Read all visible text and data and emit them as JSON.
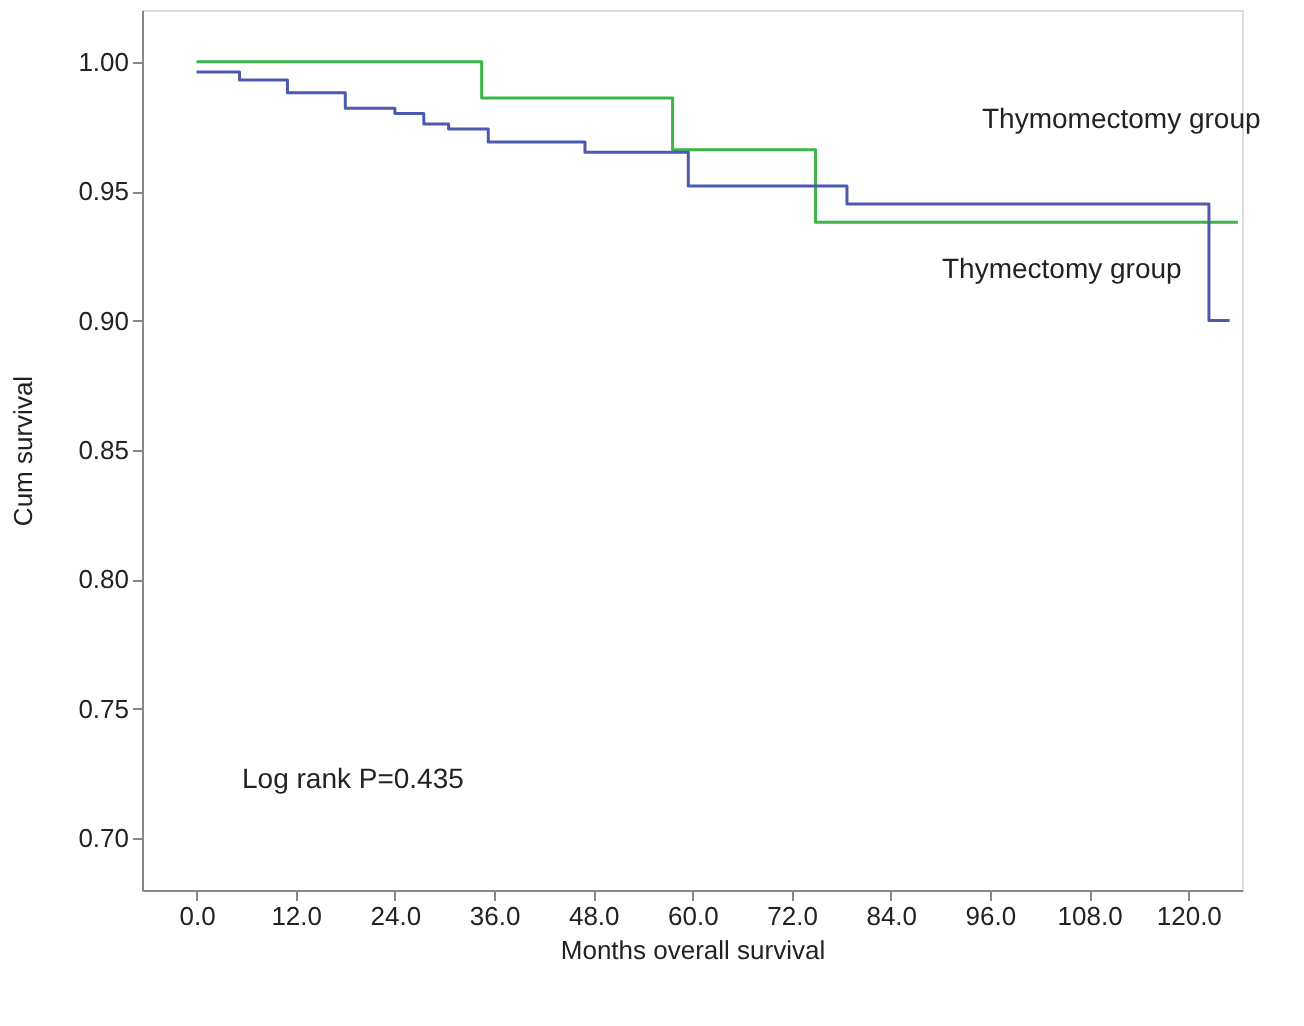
{
  "chart_data": {
    "type": "step",
    "xlabel": "Months overall survival",
    "ylabel": "Cum survival",
    "xlim": [
      -6.6,
      126.5
    ],
    "ylim": [
      0.68,
      1.02
    ],
    "xticks": [
      {
        "value": 0,
        "label": "0.0"
      },
      {
        "value": 12,
        "label": "12.0"
      },
      {
        "value": 24,
        "label": "24.0"
      },
      {
        "value": 36,
        "label": "36.0"
      },
      {
        "value": 48,
        "label": "48.0"
      },
      {
        "value": 60,
        "label": "60.0"
      },
      {
        "value": 72,
        "label": "72.0"
      },
      {
        "value": 84,
        "label": "84.0"
      },
      {
        "value": 96,
        "label": "96.0"
      },
      {
        "value": 108,
        "label": "108.0"
      },
      {
        "value": 120,
        "label": "120.0"
      }
    ],
    "yticks": [
      {
        "value": 0.7,
        "label": "0.70"
      },
      {
        "value": 0.75,
        "label": "0.75"
      },
      {
        "value": 0.8,
        "label": "0.80"
      },
      {
        "value": 0.85,
        "label": "0.85"
      },
      {
        "value": 0.9,
        "label": "0.90"
      },
      {
        "value": 0.95,
        "label": "0.95"
      },
      {
        "value": 1.0,
        "label": "1.00"
      }
    ],
    "grid": false,
    "series": [
      {
        "color": "#3cb44a",
        "x": [
          0,
          34.5,
          57.6,
          74.9,
          126
        ],
        "values": [
          1.0,
          0.986,
          0.966,
          0.938,
          0.938
        ]
      },
      {
        "color": "#4a5ab0",
        "x": [
          0,
          5.2,
          11,
          18,
          24,
          27.5,
          30.5,
          35.3,
          47,
          59.5,
          78.7,
          122.5,
          125
        ],
        "values": [
          0.996,
          0.993,
          0.988,
          0.982,
          0.98,
          0.976,
          0.974,
          0.969,
          0.965,
          0.952,
          0.945,
          0.9,
          0.9
        ]
      }
    ],
    "annotations": [
      "Thymomectomy group",
      "Thymectomy group",
      "Log rank P=0.435"
    ]
  }
}
